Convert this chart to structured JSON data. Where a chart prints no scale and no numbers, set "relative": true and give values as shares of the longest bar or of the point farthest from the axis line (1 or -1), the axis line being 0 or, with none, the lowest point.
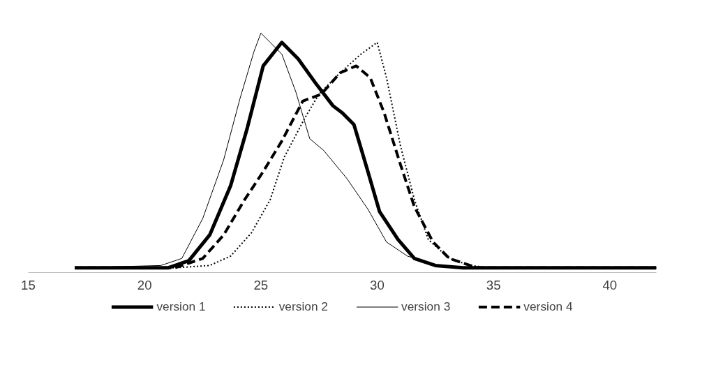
{
  "chart_data": {
    "type": "line",
    "relative": true,
    "xlim": [
      15,
      42
    ],
    "xticks": [
      15,
      20,
      25,
      30,
      35,
      40
    ],
    "grid": false,
    "legend": "bottom",
    "marker": "none",
    "series": [
      {
        "name": "version 1",
        "color": "#000000",
        "line_style": "solid",
        "x": [
          17,
          21,
          21.9,
          22.8,
          23.7,
          24.4,
          25.1,
          25.9,
          26.6,
          27.4,
          28.1,
          28.5,
          29.0,
          29.6,
          30.1,
          30.9,
          31.6,
          32.5,
          33.7,
          42
        ],
        "values": [
          0,
          0,
          0.03,
          0.14,
          0.35,
          0.59,
          0.86,
          0.96,
          0.89,
          0.78,
          0.69,
          0.66,
          0.61,
          0.41,
          0.24,
          0.12,
          0.04,
          0.01,
          0,
          0
        ]
      },
      {
        "name": "version 2",
        "color": "#000000",
        "line_style": "dotted",
        "x": [
          17,
          21.3,
          22.8,
          23.7,
          24.6,
          25.4,
          26.0,
          26.9,
          27.5,
          28.4,
          29.3,
          30.0,
          30.4,
          31.0,
          31.6,
          32.2,
          33.1,
          34.0,
          34.9,
          42
        ],
        "values": [
          0,
          0,
          0.01,
          0.05,
          0.15,
          0.29,
          0.47,
          0.64,
          0.74,
          0.83,
          0.91,
          0.96,
          0.81,
          0.52,
          0.29,
          0.12,
          0.04,
          0.01,
          0,
          0
        ]
      },
      {
        "name": "version 3",
        "color": "#000000",
        "line_style": "solid",
        "x": [
          17,
          20.7,
          21.6,
          22.5,
          23.4,
          24.1,
          24.7,
          25.0,
          25.4,
          25.9,
          26.5,
          27.1,
          27.7,
          28.7,
          29.6,
          30.4,
          31.3,
          32.5,
          33.7,
          42
        ],
        "values": [
          0,
          0.01,
          0.04,
          0.21,
          0.46,
          0.72,
          0.92,
          1,
          0.96,
          0.91,
          0.75,
          0.55,
          0.5,
          0.38,
          0.25,
          0.11,
          0.05,
          0.014,
          0,
          0
        ]
      },
      {
        "name": "version 4",
        "color": "#000000",
        "line_style": "dashed",
        "x": [
          17,
          21.3,
          22.5,
          23.4,
          24.3,
          25.1,
          25.9,
          26.8,
          27.6,
          28.4,
          29.1,
          29.7,
          30.3,
          31.0,
          31.6,
          32.4,
          33.1,
          34.3,
          42
        ],
        "values": [
          0,
          0,
          0.04,
          0.14,
          0.29,
          0.41,
          0.54,
          0.71,
          0.74,
          0.83,
          0.86,
          0.81,
          0.66,
          0.44,
          0.26,
          0.11,
          0.04,
          0,
          0
        ]
      }
    ]
  }
}
